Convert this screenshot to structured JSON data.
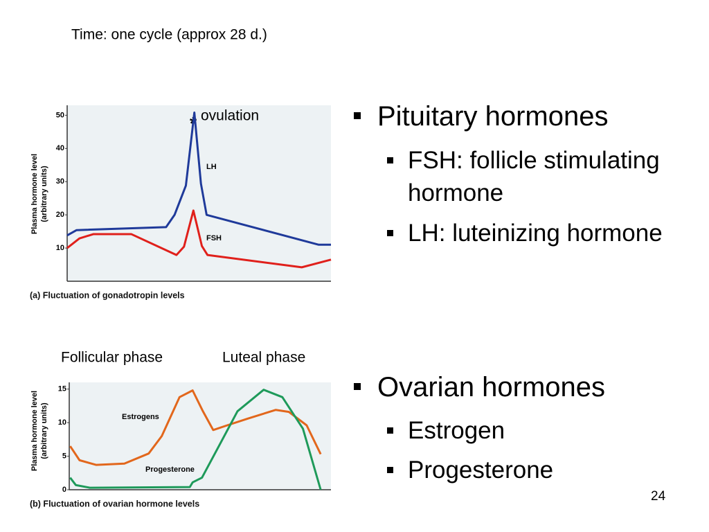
{
  "header": {
    "title": "Time: one cycle (approx 28 d.)"
  },
  "chart_data": [
    {
      "type": "line",
      "title": "(a) Fluctuation of gonadotropin levels",
      "ylabel": [
        "Plasma hormone level",
        "(arbitrary units)"
      ],
      "annotation": {
        "marker": "*",
        "text": "ovulation"
      },
      "xlim": [
        0,
        28
      ],
      "ylim": [
        0,
        53
      ],
      "yticks": [
        10,
        20,
        30,
        40,
        50
      ],
      "series": [
        {
          "name": "LH",
          "color": "#1f3a9a",
          "x": [
            0,
            1,
            10.5,
            11.4,
            12.6,
            13.5,
            14.2,
            14.8,
            26.7,
            28
          ],
          "values": [
            13.8,
            15.4,
            16.3,
            20,
            28.8,
            50.8,
            29.4,
            20,
            11,
            11
          ]
        },
        {
          "name": "FSH",
          "color": "#e0201b",
          "x": [
            0,
            1.3,
            2.8,
            6.8,
            11.6,
            12.4,
            13.4,
            14.3,
            14.9,
            24.9,
            28
          ],
          "values": [
            10,
            12.9,
            14.2,
            14.2,
            7.9,
            10.4,
            21.3,
            10.6,
            7.9,
            4.2,
            6.5
          ]
        }
      ]
    },
    {
      "type": "line",
      "title": "(b) Fluctuation of ovarian hormone levels",
      "ylabel": [
        "Plasma hormone level",
        "(arbitrary units)"
      ],
      "phases": [
        "Follicular phase",
        "Luteal phase"
      ],
      "xlim": [
        0,
        28
      ],
      "ylim": [
        0,
        16
      ],
      "yticks": [
        0,
        5,
        10,
        15
      ],
      "series": [
        {
          "name": "Estrogens",
          "color": "#e2671c",
          "x": [
            0.1,
            1.1,
            2.9,
            5.9,
            8.5,
            9.9,
            11.8,
            13.2,
            14.3,
            15.4,
            16.9,
            19.1,
            22.1,
            23.5,
            25.4,
            26.9
          ],
          "values": [
            6.5,
            4.4,
            3.7,
            3.9,
            5.4,
            8,
            13.8,
            14.8,
            11.7,
            8.9,
            9.6,
            10.6,
            11.9,
            11.6,
            9.6,
            5.3
          ]
        },
        {
          "name": "Progesterone",
          "color": "#1e9a5a",
          "x": [
            0.1,
            0.7,
            2.2,
            12.9,
            13.2,
            14.2,
            16.2,
            18,
            20.8,
            22.8,
            25,
            26.9
          ],
          "values": [
            1.8,
            0.7,
            0.3,
            0.4,
            1.1,
            1.8,
            7,
            11.7,
            14.9,
            13.8,
            9.1,
            0
          ]
        }
      ]
    }
  ],
  "bullets": [
    {
      "text": "Pituitary hormones",
      "sub": [
        "FSH: follicle stimulating hormone",
        "LH: luteinizing hormone"
      ]
    },
    {
      "text": "Ovarian hormones",
      "sub": [
        "Estrogen",
        "Progesterone"
      ]
    }
  ],
  "page_number": "24"
}
